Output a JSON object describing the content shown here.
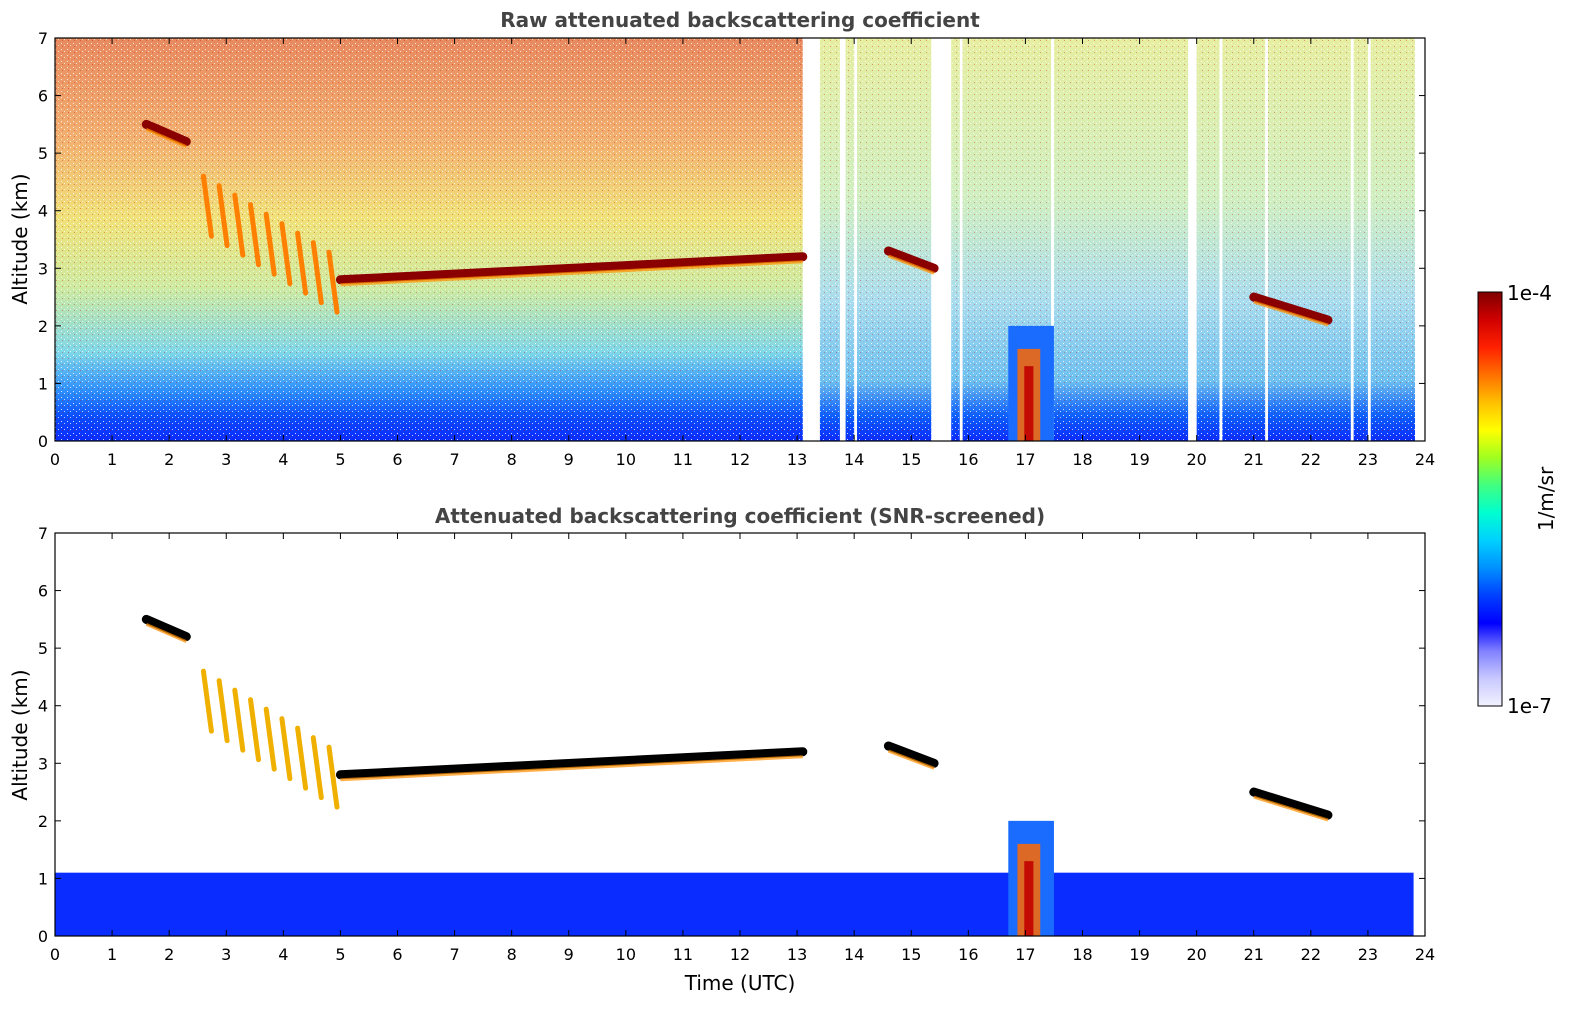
{
  "chart_data": [
    {
      "type": "heatmap",
      "title": "Raw attenuated backscattering coefficient",
      "xlabel": "",
      "ylabel": "Altitude (km)",
      "xlim": [
        0,
        24
      ],
      "ylim": [
        0,
        7
      ],
      "x_ticks": [
        "0",
        "1",
        "2",
        "3",
        "4",
        "5",
        "6",
        "7",
        "8",
        "9",
        "10",
        "11",
        "12",
        "13",
        "14",
        "15",
        "16",
        "17",
        "18",
        "19",
        "20",
        "21",
        "22",
        "23",
        "24"
      ],
      "y_ticks": [
        "0",
        "1",
        "2",
        "3",
        "4",
        "5",
        "6",
        "7"
      ],
      "data_gaps_utc": [
        [
          13.1,
          13.4
        ],
        [
          13.75,
          13.85
        ],
        [
          14.0,
          14.05
        ],
        [
          15.35,
          15.7
        ],
        [
          15.85,
          15.9
        ],
        [
          17.45,
          17.5
        ],
        [
          19.85,
          20.0
        ],
        [
          20.4,
          20.45
        ],
        [
          21.2,
          21.25
        ],
        [
          22.7,
          22.75
        ],
        [
          23.0,
          23.05
        ]
      ],
      "features": [
        {
          "kind": "cloud layer",
          "x": [
            1.6,
            2.3
          ],
          "y": [
            5.5,
            5.2
          ]
        },
        {
          "kind": "precipitation streaks",
          "x": [
            2.6,
            4.8
          ],
          "y": [
            4.6,
            2.4
          ]
        },
        {
          "kind": "cloud layer",
          "x": [
            5.0,
            13.1
          ],
          "y": [
            2.8,
            3.2
          ]
        },
        {
          "kind": "cloud layer",
          "x": [
            14.6,
            15.4
          ],
          "y": [
            3.3,
            3.0
          ]
        },
        {
          "kind": "convective column",
          "x": [
            16.7,
            17.5
          ],
          "y": [
            0.0,
            2.0
          ]
        },
        {
          "kind": "cloud layer",
          "x": [
            21.0,
            22.3
          ],
          "y": [
            2.5,
            2.1
          ]
        },
        {
          "kind": "boundary layer",
          "x": [
            0,
            23.8
          ],
          "y": [
            0.0,
            0.6
          ]
        }
      ],
      "colorbar": {
        "min_label": "1e-7",
        "max_label": "1e-4",
        "unit": "1/m/sr",
        "scale": "log"
      }
    },
    {
      "type": "heatmap",
      "title": "Attenuated backscattering coefficient (SNR-screened)",
      "xlabel": "Time (UTC)",
      "ylabel": "Altitude (km)",
      "xlim": [
        0,
        24
      ],
      "ylim": [
        0,
        7
      ],
      "x_ticks": [
        "0",
        "1",
        "2",
        "3",
        "4",
        "5",
        "6",
        "7",
        "8",
        "9",
        "10",
        "11",
        "12",
        "13",
        "14",
        "15",
        "16",
        "17",
        "18",
        "19",
        "20",
        "21",
        "22",
        "23",
        "24"
      ],
      "y_ticks": [
        "0",
        "1",
        "2",
        "3",
        "4",
        "5",
        "6",
        "7"
      ],
      "features": [
        {
          "kind": "boundary layer",
          "x": [
            0,
            23.8
          ],
          "y": [
            0.0,
            1.1
          ]
        },
        {
          "kind": "cloud layer",
          "x": [
            1.6,
            2.3
          ],
          "y": [
            5.5,
            5.2
          ]
        },
        {
          "kind": "precipitation streaks",
          "x": [
            2.6,
            4.8
          ],
          "y": [
            4.6,
            2.4
          ]
        },
        {
          "kind": "cloud layer",
          "x": [
            5.0,
            13.1
          ],
          "y": [
            2.8,
            3.2
          ]
        },
        {
          "kind": "cloud layer",
          "x": [
            14.6,
            15.4
          ],
          "y": [
            3.3,
            3.0
          ]
        },
        {
          "kind": "convective column",
          "x": [
            16.7,
            17.5
          ],
          "y": [
            0.0,
            2.0
          ]
        },
        {
          "kind": "cloud layer",
          "x": [
            21.0,
            22.3
          ],
          "y": [
            2.5,
            2.1
          ]
        }
      ]
    }
  ],
  "colorbar": {
    "max_label": "1e-4",
    "min_label": "1e-7",
    "unit": "1/m/sr",
    "colors": [
      "#f2f2ff",
      "#c8c8ff",
      "#8080ff",
      "#0000ff",
      "#0040ff",
      "#0090ff",
      "#00d0ff",
      "#00ffd0",
      "#40ff80",
      "#a0ff20",
      "#ffff00",
      "#ffc000",
      "#ff7000",
      "#ff2000",
      "#d00000",
      "#800000"
    ]
  }
}
